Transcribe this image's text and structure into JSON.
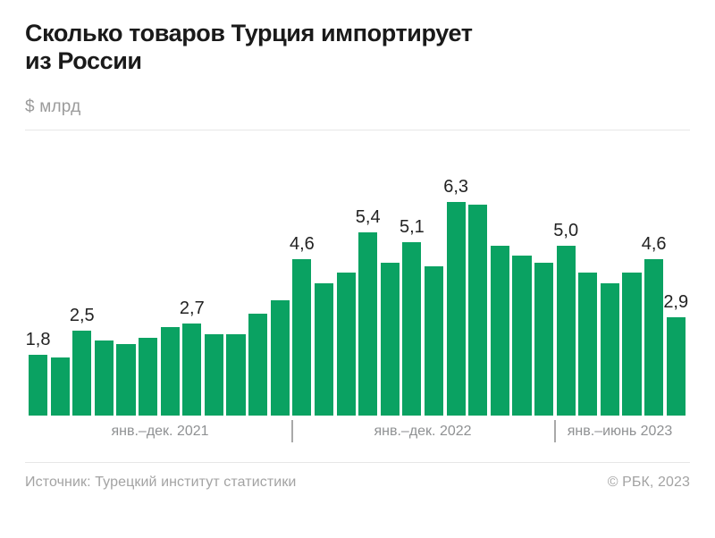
{
  "header": {
    "title_lines": [
      "Сколько товаров Турция импортирует",
      "из России"
    ],
    "subtitle": "$ млрд"
  },
  "footer": {
    "source": "Источник: Турецкий институт статистики",
    "copyright": "© РБК, 2023"
  },
  "chart_data": {
    "type": "bar",
    "title": "Сколько товаров Турция импортирует из России",
    "unit": "$ млрд",
    "bar_color": "#0aa262",
    "value_label_color": "#222222",
    "ylim": [
      0,
      6.8
    ],
    "grid": false,
    "legend": "none",
    "groups": [
      {
        "label": "янв.–дек. 2021",
        "points": [
          {
            "v": 1.8,
            "label": "1,8"
          },
          {
            "v": 1.7
          },
          {
            "v": 2.5,
            "label": "2,5"
          },
          {
            "v": 2.2
          },
          {
            "v": 2.1
          },
          {
            "v": 2.3
          },
          {
            "v": 2.6
          },
          {
            "v": 2.7,
            "label": "2,7"
          },
          {
            "v": 2.4
          },
          {
            "v": 2.4
          },
          {
            "v": 3.0
          },
          {
            "v": 3.4
          }
        ]
      },
      {
        "label": "янв.–дек. 2022",
        "points": [
          {
            "v": 4.6,
            "label": "4,6"
          },
          {
            "v": 3.9
          },
          {
            "v": 4.2
          },
          {
            "v": 5.4,
            "label": "5,4"
          },
          {
            "v": 4.5
          },
          {
            "v": 5.1,
            "label": "5,1"
          },
          {
            "v": 4.4
          },
          {
            "v": 6.3,
            "label": "6,3"
          },
          {
            "v": 6.2
          },
          {
            "v": 5.0
          },
          {
            "v": 4.7
          },
          {
            "v": 4.5
          }
        ]
      },
      {
        "label": "янв.–июнь 2023",
        "points": [
          {
            "v": 5.0,
            "label": "5,0"
          },
          {
            "v": 4.2
          },
          {
            "v": 3.9
          },
          {
            "v": 4.2
          },
          {
            "v": 4.6,
            "label": "4,6"
          },
          {
            "v": 2.9,
            "label": "2,9"
          }
        ]
      }
    ]
  }
}
